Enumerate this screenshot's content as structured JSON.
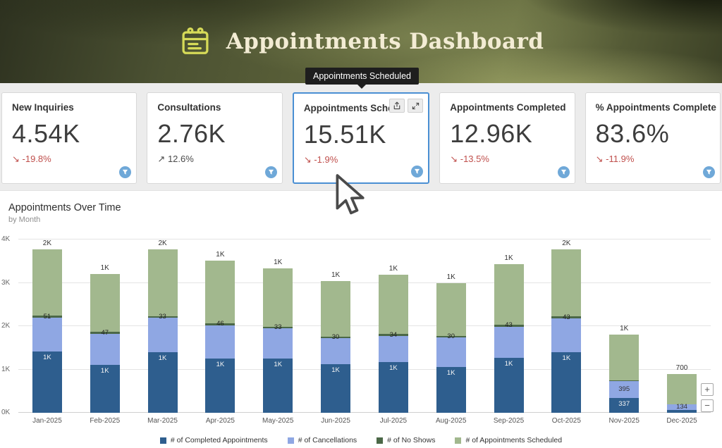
{
  "header": {
    "title": "Appointments Dashboard"
  },
  "tooltip": {
    "text": "Appointments Scheduled"
  },
  "cards": [
    {
      "title": "New Inquiries",
      "value": "4.54K",
      "arrow": "↘",
      "trend": "-19.8%"
    },
    {
      "title": "Consultations",
      "value": "2.76K",
      "arrow": "↗",
      "trend": "12.6%"
    },
    {
      "title": "Appointments Sche",
      "value": "15.51K",
      "arrow": "↘",
      "trend": "-1.9%"
    },
    {
      "title": "Appointments Completed",
      "value": "12.96K",
      "arrow": "↘",
      "trend": "-13.5%"
    },
    {
      "title": "% Appointments Complete",
      "value": "83.6%",
      "arrow": "↘",
      "trend": "-11.9%"
    }
  ],
  "colors": {
    "accent_blue": "#4a8fd3",
    "trend_red": "#c0504d",
    "trend_neutral": "#4a4a4a",
    "header_cream": "#f3ecd4",
    "calendar_icon_yellow": "#d6da58"
  },
  "zoom": {
    "zoom_in": "+",
    "zoom_out": "−"
  },
  "chart_data": {
    "type": "bar",
    "stacked": true,
    "title": "Appointments Over Time",
    "subtitle": "by Month",
    "ylim": [
      0,
      4000
    ],
    "y_ticks": [
      "0K",
      "1K",
      "2K",
      "3K",
      "4K"
    ],
    "grid": true,
    "legend_position": "bottom",
    "categories": [
      "Jan-2025",
      "Feb-2025",
      "Mar-2025",
      "Apr-2025",
      "May-2025",
      "Jun-2025",
      "Jul-2025",
      "Aug-2025",
      "Sep-2025",
      "Oct-2025",
      "Nov-2025",
      "Dec-2025"
    ],
    "series": [
      {
        "name": "# of Completed Appointments",
        "color": "#2e5e8e",
        "label_color": "#f5f5f5",
        "label_pos": "top",
        "values": [
          1430,
          1100,
          1400,
          1250,
          1250,
          1120,
          1170,
          1060,
          1270,
          1400,
          337,
          60
        ],
        "labels": [
          "1K",
          "1K",
          "1K",
          "1K",
          "1K",
          "1K",
          "1K",
          "1K",
          "1K",
          "1K",
          "337",
          ""
        ]
      },
      {
        "name": "# of Cancellations",
        "color": "#8fa7e3",
        "label_color": "#333333",
        "label_pos": "center",
        "values": [
          790,
          720,
          790,
          770,
          700,
          610,
          610,
          680,
          720,
          780,
          395,
          134
        ],
        "labels": [
          "",
          "",
          "",
          "",
          "",
          "",
          "",
          "",
          "",
          "",
          "395",
          "134"
        ]
      },
      {
        "name": "# of No Shows",
        "color": "#4b6847",
        "label_color": "#1f1f1f",
        "label_pos": "center",
        "values": [
          51,
          47,
          33,
          46,
          33,
          30,
          34,
          30,
          43,
          43,
          20,
          8
        ],
        "labels": [
          "51",
          "47",
          "33",
          "46",
          "33",
          "30",
          "34",
          "30",
          "43",
          "43",
          "",
          ""
        ]
      },
      {
        "name": "# of Appointments Scheduled",
        "color": "#a2b88e",
        "label_color": "#333333",
        "label_pos": "center",
        "values": [
          1550,
          1330,
          1550,
          1450,
          1350,
          1280,
          1380,
          1230,
          1400,
          1550,
          1050,
          700
        ],
        "labels": [
          "",
          "",
          "",
          "",
          "",
          "",
          "",
          "",
          "",
          "",
          "",
          ""
        ]
      }
    ],
    "total_labels": [
      "2K",
      "1K",
      "2K",
      "1K",
      "1K",
      "1K",
      "1K",
      "1K",
      "1K",
      "2K",
      "1K",
      "700"
    ]
  }
}
